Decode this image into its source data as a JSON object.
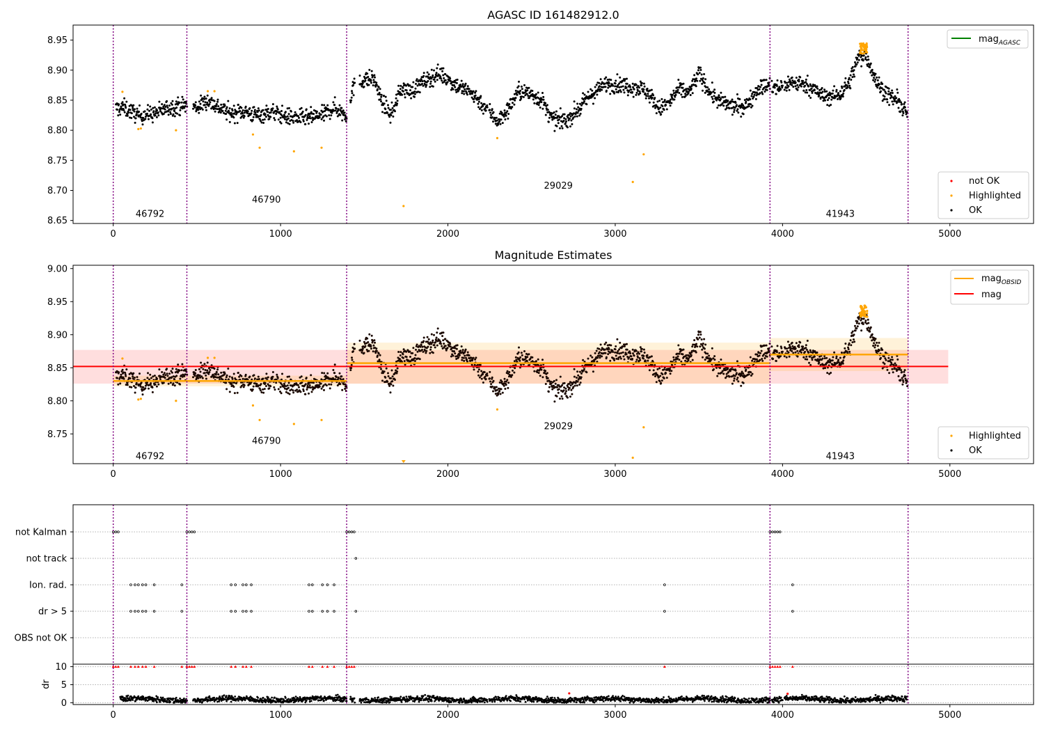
{
  "chart_data": [
    {
      "type": "scatter",
      "title": "AGASC ID 161482912.0",
      "xlim": [
        -240,
        5500
      ],
      "ylim": [
        8.645,
        8.975
      ],
      "xticks": [
        0,
        1000,
        2000,
        3000,
        4000,
        5000
      ],
      "yticks": [
        8.65,
        8.7,
        8.75,
        8.8,
        8.85,
        8.9,
        8.95
      ],
      "obs_boundaries": [
        0,
        440,
        1395,
        3925,
        4750
      ],
      "obs_labels": [
        {
          "text": "46792",
          "x": 220,
          "y": 8.656
        },
        {
          "text": "46790",
          "x": 915,
          "y": 8.68
        },
        {
          "text": "29029",
          "x": 2660,
          "y": 8.703
        },
        {
          "text": "41943",
          "x": 4345,
          "y": 8.656
        }
      ],
      "highlighted": [
        [
          55,
          8.864
        ],
        [
          150,
          8.802
        ],
        [
          165,
          8.803
        ],
        [
          375,
          8.8
        ],
        [
          565,
          8.865
        ],
        [
          605,
          8.865
        ],
        [
          835,
          8.793
        ],
        [
          875,
          8.771
        ],
        [
          1080,
          8.765
        ],
        [
          1245,
          8.771
        ],
        [
          1735,
          8.674
        ],
        [
          2295,
          8.787
        ],
        [
          3105,
          8.714
        ],
        [
          3170,
          8.76
        ]
      ],
      "legend_lines": [
        {
          "label": "mag",
          "sub": "AGASC",
          "color": "#008000"
        }
      ],
      "legend_markers": [
        {
          "label": "not OK",
          "color": "#ff0000"
        },
        {
          "label": "Highlighted",
          "color": "#ffa500"
        },
        {
          "label": "OK",
          "color": "#000000"
        }
      ]
    },
    {
      "type": "scatter",
      "title": "Magnitude Estimates",
      "xlim": [
        -240,
        5500
      ],
      "ylim": [
        8.705,
        9.005
      ],
      "xticks": [
        0,
        1000,
        2000,
        3000,
        4000,
        5000
      ],
      "yticks": [
        8.75,
        8.8,
        8.85,
        8.9,
        8.95,
        9.0
      ],
      "obs_labels": [
        {
          "text": "46792",
          "x": 220,
          "y": 8.712
        },
        {
          "text": "46790",
          "x": 915,
          "y": 8.735
        },
        {
          "text": "29029",
          "x": 2660,
          "y": 8.757
        },
        {
          "text": "41943",
          "x": 4345,
          "y": 8.712
        }
      ],
      "mag": {
        "value": 8.852,
        "lo": 8.826,
        "hi": 8.877,
        "x_range": [
          -240,
          4990
        ]
      },
      "mag_obsid": [
        {
          "x0": 0,
          "x1": 1395,
          "value": 8.83,
          "lo": 8.822,
          "hi": 8.838
        },
        {
          "x0": 1395,
          "x1": 3925,
          "value": 8.857,
          "lo": 8.826,
          "hi": 8.888
        },
        {
          "x0": 3925,
          "x1": 4750,
          "value": 8.87,
          "lo": 8.845,
          "hi": 8.895
        }
      ],
      "highlighted": [
        [
          55,
          8.864
        ],
        [
          150,
          8.802
        ],
        [
          165,
          8.803
        ],
        [
          375,
          8.8
        ],
        [
          565,
          8.865
        ],
        [
          605,
          8.865
        ],
        [
          835,
          8.793
        ],
        [
          875,
          8.771
        ],
        [
          1080,
          8.765
        ],
        [
          1245,
          8.771
        ],
        [
          2295,
          8.787
        ],
        [
          3105,
          8.714
        ],
        [
          3170,
          8.76
        ]
      ],
      "clipped_markers": [
        {
          "x": 1735
        }
      ],
      "legend_lines": [
        {
          "label": "mag",
          "sub": "OBSID",
          "color": "#ffa500"
        },
        {
          "label": "mag",
          "sub": "",
          "color": "#ff0000"
        }
      ],
      "legend_markers": [
        {
          "label": "Highlighted",
          "color": "#ffa500"
        },
        {
          "label": "OK",
          "color": "#000000"
        }
      ]
    },
    {
      "type": "scatter",
      "title": "",
      "xlim": [
        -240,
        5500
      ],
      "flag_rows": [
        {
          "label": "not Kalman",
          "points": [
            0,
            15,
            30,
            440,
            455,
            470,
            485,
            1395,
            1410,
            1425,
            1440,
            3925,
            3940,
            3955,
            3970,
            3985
          ]
        },
        {
          "label": "not track",
          "points": [
            1450
          ]
        },
        {
          "label": "Ion. rad.",
          "points": [
            105,
            130,
            150,
            175,
            195,
            245,
            410,
            705,
            730,
            775,
            795,
            825,
            1170,
            1190,
            1250,
            1280,
            1320,
            3295,
            4060
          ]
        },
        {
          "label": "dr > 5",
          "points": [
            105,
            130,
            150,
            175,
            195,
            245,
            410,
            705,
            730,
            775,
            795,
            825,
            1170,
            1190,
            1250,
            1280,
            1320,
            1450,
            3295,
            4060
          ]
        },
        {
          "label": "OBS not OK",
          "points": []
        }
      ],
      "dr_ylim": [
        -0.5,
        10.5
      ],
      "dr_yticks": [
        0,
        5,
        10
      ],
      "dr_label": "dr",
      "dr_high_points": [
        0,
        15,
        30,
        105,
        130,
        150,
        175,
        195,
        245,
        410,
        440,
        455,
        470,
        485,
        705,
        730,
        775,
        795,
        825,
        1170,
        1190,
        1250,
        1280,
        1320,
        1395,
        1410,
        1425,
        1440,
        3295,
        3925,
        3940,
        3955,
        3970,
        3985,
        4060
      ],
      "dr_outliers": [
        [
          2725,
          2.6
        ],
        [
          4030,
          2.5
        ]
      ]
    }
  ]
}
